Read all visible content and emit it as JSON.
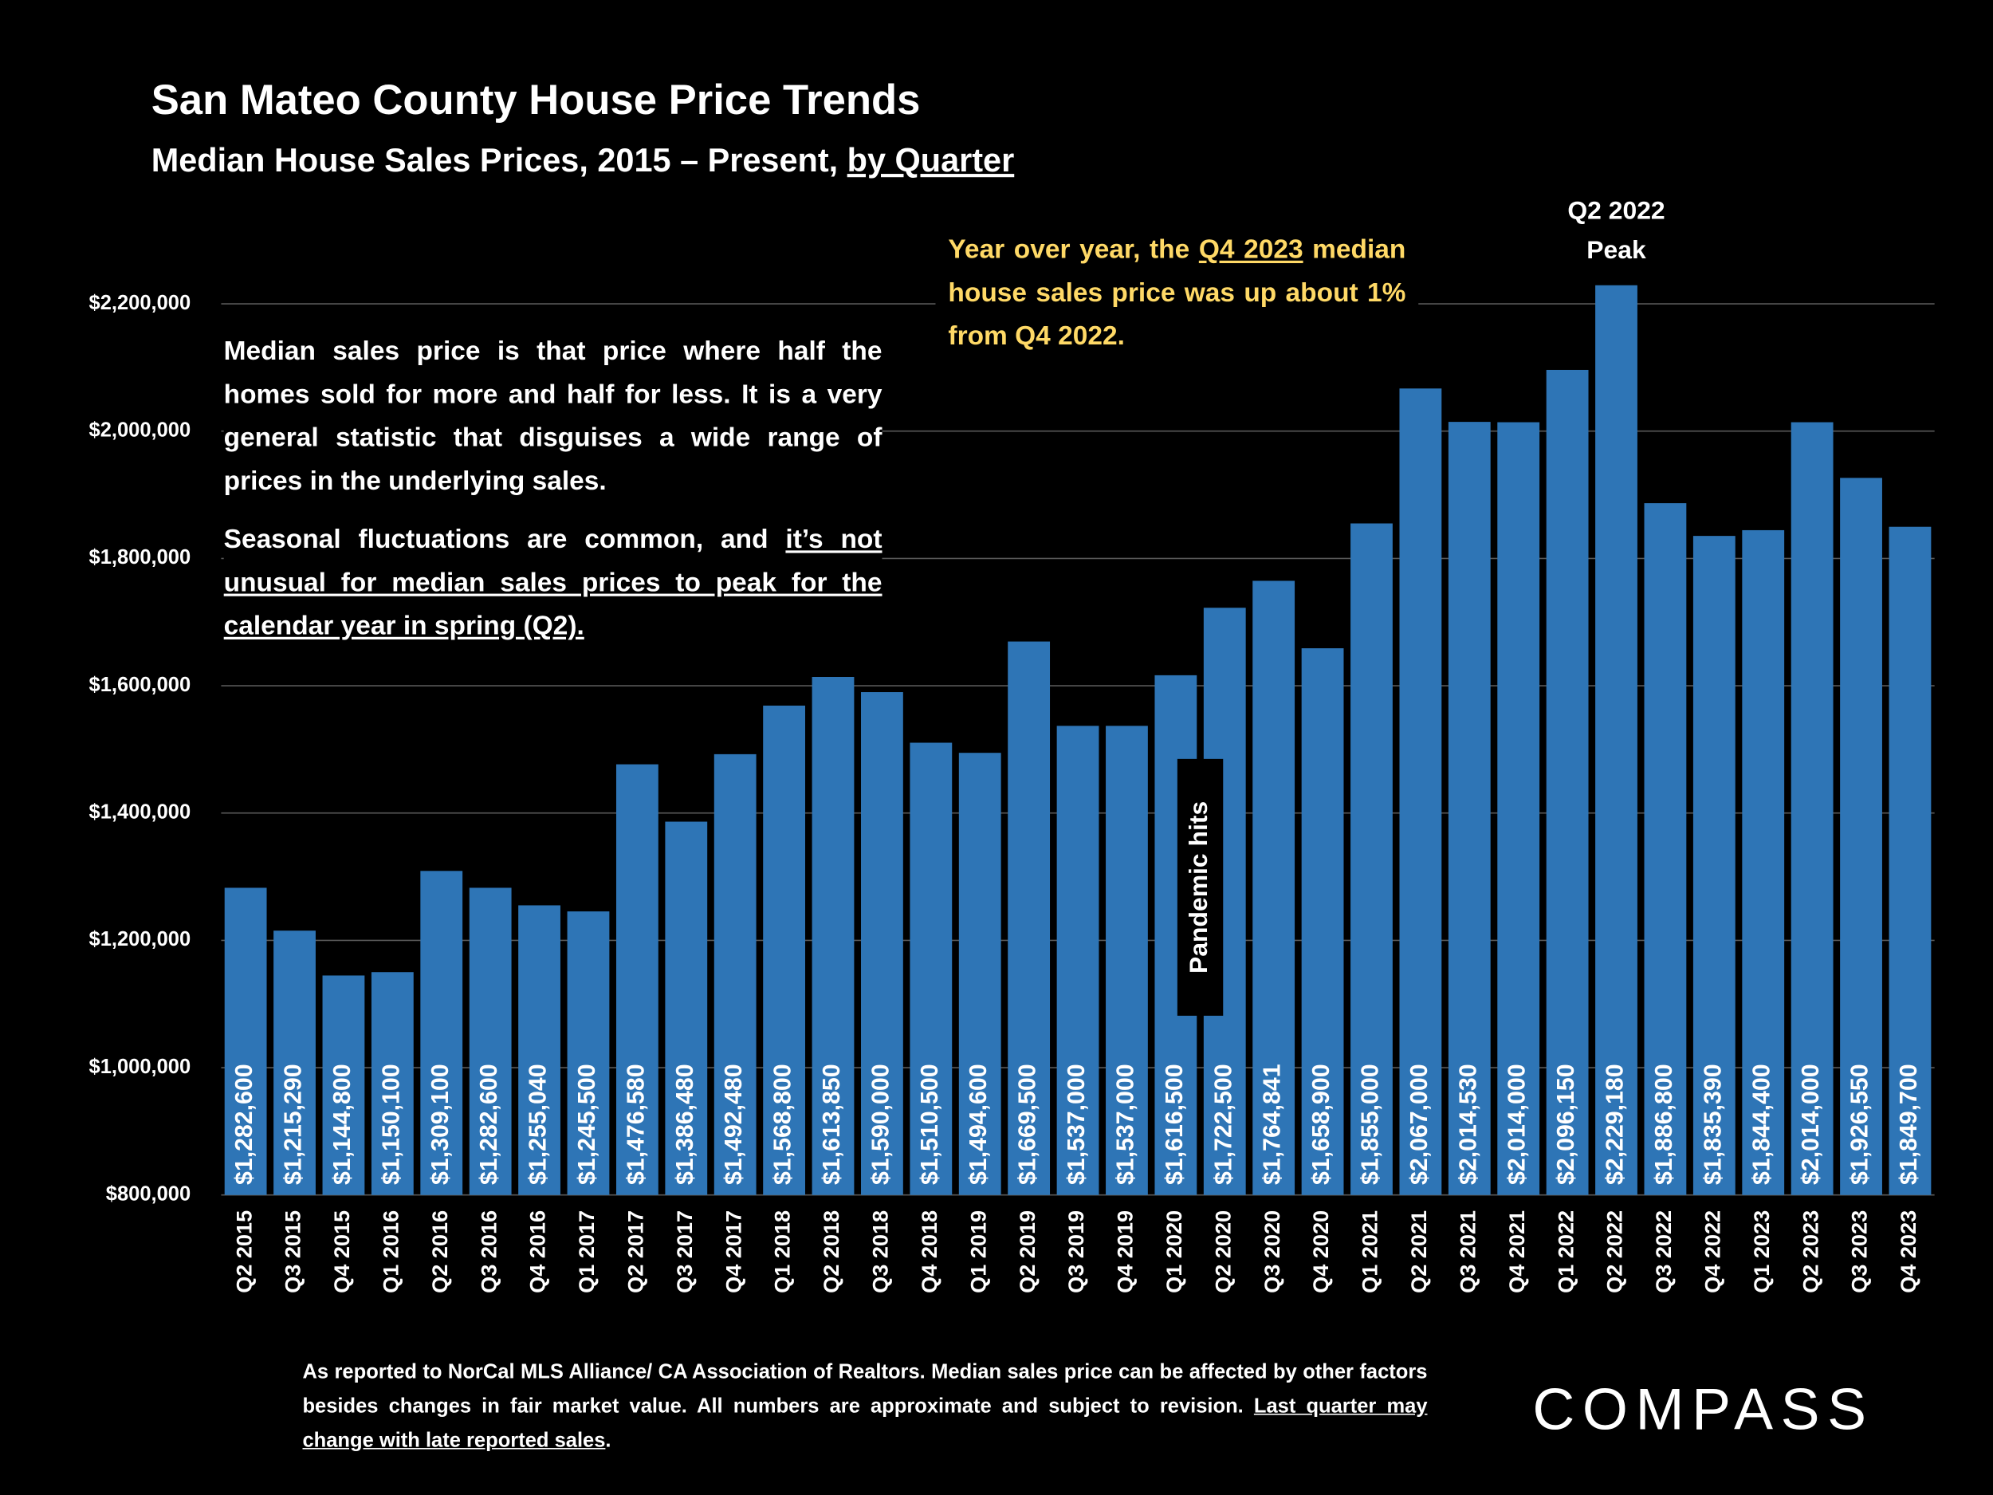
{
  "chart_data": {
    "type": "bar",
    "title": "San Mateo County House Price Trends",
    "subtitle": [
      "Median House Sales Prices, 2015 – Present, ",
      "by Quarter"
    ],
    "categories": [
      "Q2 2015",
      "Q3 2015",
      "Q4 2015",
      "Q1 2016",
      "Q2 2016",
      "Q3 2016",
      "Q4 2016",
      "Q1 2017",
      "Q2 2017",
      "Q3 2017",
      "Q4 2017",
      "Q1 2018",
      "Q2 2018",
      "Q3 2018",
      "Q4 2018",
      "Q1 2019",
      "Q2 2019",
      "Q3 2019",
      "Q4 2019",
      "Q1 2020",
      "Q2 2020",
      "Q3 2020",
      "Q4 2020",
      "Q1 2021",
      "Q2 2021",
      "Q3 2021",
      "Q4 2021",
      "Q1 2022",
      "Q2 2022",
      "Q3 2022",
      "Q4 2022",
      "Q1 2023",
      "Q2 2023",
      "Q3 2023",
      "Q4 2023"
    ],
    "values": [
      1282600,
      1215290,
      1144800,
      1150100,
      1309100,
      1282600,
      1255040,
      1245500,
      1476580,
      1386480,
      1492480,
      1568800,
      1613850,
      1590000,
      1510500,
      1494600,
      1669500,
      1537000,
      1537000,
      1616500,
      1722500,
      1764841,
      1658900,
      1855000,
      2067000,
      2014530,
      2014000,
      2096150,
      2229180,
      1886800,
      1835390,
      1844400,
      2014000,
      1926550,
      1849700
    ],
    "value_labels": [
      "$1,282,600",
      "$1,215,290",
      "$1,144,800",
      "$1,150,100",
      "$1,309,100",
      "$1,282,600",
      "$1,255,040",
      "$1,245,500",
      "$1,476,580",
      "$1,386,480",
      "$1,492,480",
      "$1,568,800",
      "$1,613,850",
      "$1,590,000",
      "$1,510,500",
      "$1,494,600",
      "$1,669,500",
      "$1,537,000",
      "$1,537,000",
      "$1,616,500",
      "$1,722,500",
      "$1,764,841",
      "$1,658,900",
      "$1,855,000",
      "$2,067,000",
      "$2,014,530",
      "$2,014,000",
      "$2,096,150",
      "$2,229,180",
      "$1,886,800",
      "$1,835,390",
      "$1,844,400",
      "$2,014,000",
      "$1,926,550",
      "$1,849,700"
    ],
    "color": "#2e75b6",
    "ylim": [
      800000,
      2200000
    ],
    "yticks": [
      {
        "value": 800000,
        "label": "$800,000"
      },
      {
        "value": 1000000,
        "label": "$1,000,000"
      },
      {
        "value": 1200000,
        "label": "$1,200,000"
      },
      {
        "value": 1400000,
        "label": "$1,400,000"
      },
      {
        "value": 1600000,
        "label": "$1,600,000"
      },
      {
        "value": 1800000,
        "label": "$1,800,000"
      },
      {
        "value": 2000000,
        "label": "$2,000,000"
      },
      {
        "value": 2200000,
        "label": "$2,200,000"
      }
    ],
    "grid": true,
    "annotations": {
      "definition": "Median sales price is that price where half the homes sold for more and half for less. It is a very general statistic that disguises a wide range of prices in the underlying sales.",
      "seasonal": [
        "Seasonal fluctuations are common, and ",
        "it’s not unusual for median sales prices to peak for the calendar year in spring (Q2)."
      ],
      "yoy": [
        "Year over year, the ",
        "Q4 2023",
        " median house sales price was up about 1% from Q4 2022."
      ],
      "peak": [
        "Q2 2022",
        "Peak"
      ],
      "pandemic": "Pandemic hits"
    }
  },
  "footer": [
    "As reported to NorCal MLS Alliance/ CA Association of Realtors. Median sales price can be affected by other factors besides changes in fair market value. All numbers are approximate and subject to revision. ",
    "Last quarter may change with late reported sales",
    "."
  ],
  "logo": "COMPASS"
}
